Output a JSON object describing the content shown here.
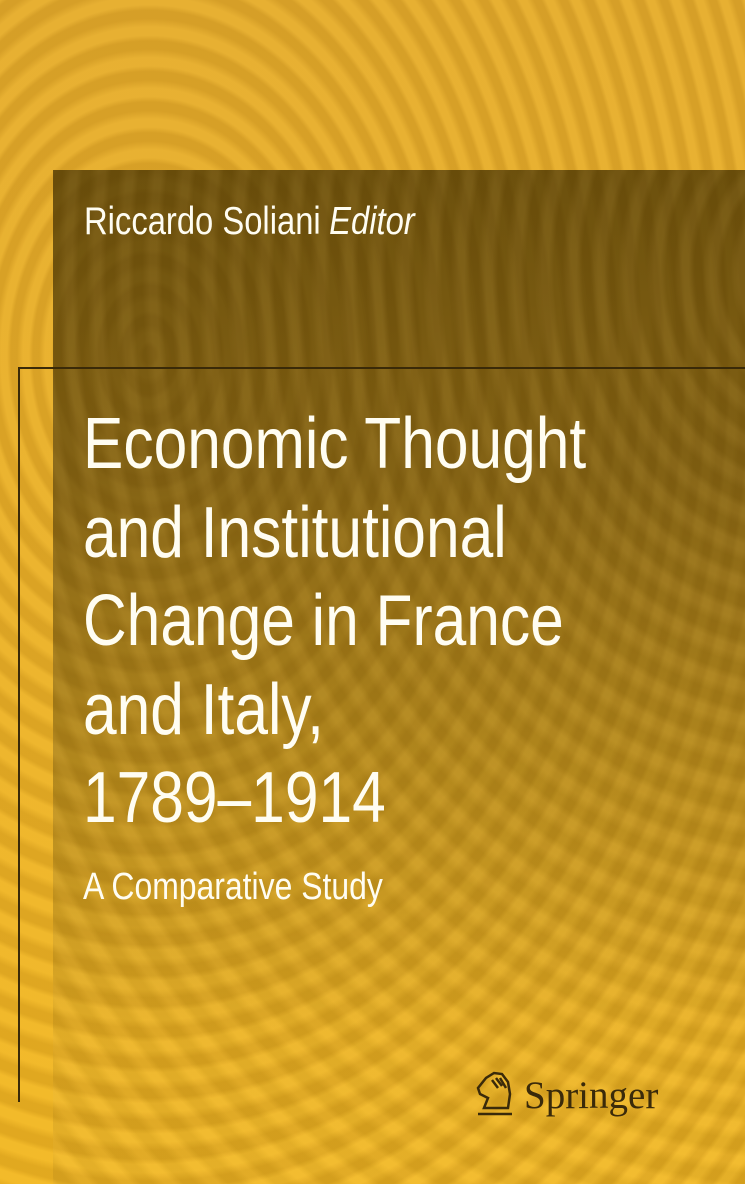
{
  "author": {
    "name": "Riccardo Soliani",
    "role": "Editor"
  },
  "title": {
    "lines": [
      "Economic Thought",
      "and Institutional",
      "Change in France",
      "and Italy,",
      "1789–1914"
    ]
  },
  "subtitle": "A Comparative Study",
  "publisher": {
    "name": "Springer",
    "icon": "knight-horse-icon"
  },
  "colors": {
    "background": "#e8b02c",
    "panel": "#6b5418",
    "text": "#fffdf2",
    "logo": "#3a2a0a"
  }
}
